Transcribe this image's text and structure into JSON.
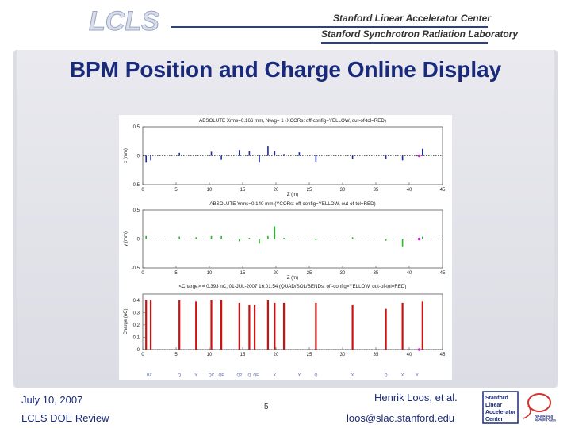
{
  "header": {
    "org_line1": "Stanford Linear Accelerator Center",
    "org_line2": "Stanford Synchrotron Radiation Laboratory",
    "logo_text": "LCLS"
  },
  "slide": {
    "title": "BPM Position and Charge Online Display"
  },
  "chart_data": [
    {
      "type": "bar",
      "title": "ABSOLUTE  Xrms=0.166 mm, Ntwg= 1 (XCORs: off-config=YELLOW, out-of-tol=RED)",
      "ylabel": "x (mm)",
      "xlabel": "Z (m)",
      "ylim": [
        -0.5,
        0.5
      ],
      "xlim": [
        0,
        45
      ],
      "yticks": [
        "0.5",
        "0",
        "-0.5"
      ],
      "xticks": [
        "0",
        "5",
        "10",
        "15",
        "20",
        "25",
        "30",
        "35",
        "40",
        "45"
      ],
      "color": "#1a2aa8",
      "x": [
        0.5,
        1.2,
        5.5,
        10.3,
        11.8,
        14.5,
        16.0,
        17.5,
        18.8,
        19.8,
        21.2,
        23.5,
        26.0,
        31.5,
        36.5,
        39.0,
        41.2,
        42.0
      ],
      "values": [
        -0.12,
        -0.08,
        0.05,
        0.07,
        -0.07,
        0.1,
        0.08,
        -0.12,
        0.17,
        0.08,
        0.03,
        0.06,
        -0.1,
        -0.05,
        -0.05,
        -0.08,
        0.0,
        0.12
      ]
    },
    {
      "type": "bar",
      "title": "ABSOLUTE  Yrms=0.140 mm (YCORs: off-config=YELLOW, out-of-tol=RED)",
      "ylabel": "y (mm)",
      "xlabel": "Z (m)",
      "ylim": [
        -0.5,
        0.5
      ],
      "xlim": [
        0,
        45
      ],
      "yticks": [
        "0.5",
        "0",
        "-0.5"
      ],
      "xticks": [
        "0",
        "5",
        "10",
        "15",
        "20",
        "25",
        "30",
        "35",
        "40",
        "45"
      ],
      "color": "#1fbf1f",
      "x": [
        0.5,
        5.5,
        8.0,
        10.3,
        11.8,
        14.5,
        16.0,
        17.5,
        18.8,
        19.8,
        21.2,
        26.0,
        31.5,
        36.5,
        39.0,
        42.0
      ],
      "values": [
        0.05,
        0.04,
        0.03,
        0.05,
        0.05,
        -0.04,
        0.02,
        -0.08,
        0.05,
        0.22,
        0.02,
        -0.02,
        0.03,
        -0.03,
        -0.14,
        0.04
      ]
    },
    {
      "type": "bar",
      "title": "<Charge> = 0.393 nC,   01-JUL-2007 16:01:54 (QUAD/SOL/BENDs: off-config=YELLOW, out-of-tol=RED)",
      "ylabel": "Charge (nC)",
      "xlim": [
        0,
        45
      ],
      "ylim": [
        0,
        0.45
      ],
      "yticks": [
        "0.4",
        "0.3",
        "0.2",
        "0.1",
        "0"
      ],
      "xticks": [
        "0",
        "5",
        "10",
        "15",
        "20",
        "25",
        "30",
        "35",
        "40",
        "45"
      ],
      "color": "#cc1111",
      "x": [
        0.5,
        1.2,
        5.5,
        8.0,
        10.3,
        11.8,
        14.5,
        16.0,
        16.8,
        18.8,
        19.8,
        21.2,
        26.0,
        31.5,
        36.5,
        39.0,
        42.0
      ],
      "values": [
        0.4,
        0.4,
        0.4,
        0.39,
        0.4,
        0.4,
        0.38,
        0.36,
        0.36,
        0.4,
        0.38,
        0.38,
        0.38,
        0.36,
        0.33,
        0.38,
        0.39
      ]
    }
  ],
  "device_labels": [
    "BX",
    "Q",
    "Y",
    "QC",
    "QE",
    "Q2",
    "Q",
    "QF",
    "X",
    "Y",
    "Q",
    "X",
    "Q",
    "X",
    "Y"
  ],
  "footer": {
    "date": "July 10, 2007",
    "event": "LCLS DOE Review",
    "page": "5",
    "author": "Henrik Loos, et al.",
    "email": "loos@slac.stanford.edu",
    "ssrl_logo_text": "SSRL",
    "lab_logo_lines": [
      "Stanford",
      "Linear",
      "Accelerator",
      "Center"
    ]
  }
}
